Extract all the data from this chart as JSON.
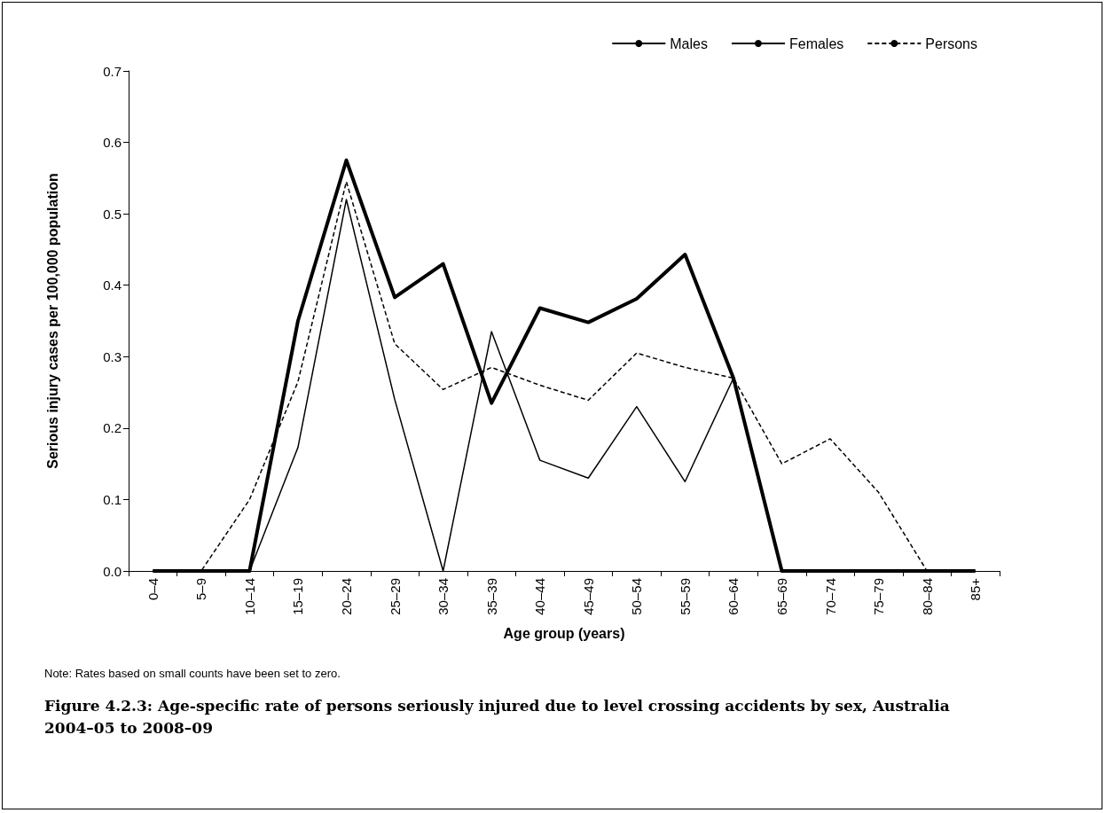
{
  "chart_data": {
    "type": "line",
    "title": "Figure 4.2.3: Age-specific rate of persons seriously injured due to level crossing accidents by sex, Australia 2004–05 to 2008–09",
    "xlabel": "Age group (years)",
    "ylabel": "Serious injury cases per 100,000 population",
    "annotations": [
      "Note: Rates based on small counts have been set to zero."
    ],
    "categories": [
      "0–4",
      "5–9",
      "10–14",
      "15–19",
      "20–24",
      "25–29",
      "30–34",
      "35–39",
      "40–44",
      "45–49",
      "50–54",
      "55–59",
      "60–64",
      "65–69",
      "70–74",
      "75–79",
      "80–84",
      "85+"
    ],
    "series": [
      {
        "name": "Males",
        "color": "#000000",
        "line_style": "solid",
        "values": [
          0,
          0,
          0,
          0.35,
          0.575,
          0.383,
          0.43,
          0.235,
          0.368,
          0.348,
          0.381,
          0.443,
          0.27,
          0,
          0,
          0,
          0,
          0
        ]
      },
      {
        "name": "Females",
        "color": "#000000",
        "line_style": "solid",
        "values": [
          0,
          0,
          0,
          0.173,
          0.52,
          0.24,
          0,
          0.335,
          0.155,
          0.13,
          0.23,
          0.125,
          0.27,
          0,
          0,
          0,
          0,
          0
        ]
      },
      {
        "name": "Persons",
        "color": "#000000",
        "line_style": "dashed",
        "values": [
          0,
          0,
          0.1,
          0.265,
          0.545,
          0.318,
          0.254,
          0.285,
          0.26,
          0.239,
          0.305,
          0.285,
          0.27,
          0.15,
          0.185,
          0.11,
          0,
          0
        ]
      }
    ],
    "ylim": [
      0,
      0.7
    ],
    "yticks": [
      {
        "value": 0,
        "label": "0.0"
      },
      {
        "value": 0.1,
        "label": "0.1"
      },
      {
        "value": 0.2,
        "label": "0.2"
      },
      {
        "value": 0.3,
        "label": "0.3"
      },
      {
        "value": 0.4,
        "label": "0.4"
      },
      {
        "value": 0.5,
        "label": "0.5"
      },
      {
        "value": 0.6,
        "label": "0.6"
      },
      {
        "value": 0.7,
        "label": "0.7"
      }
    ],
    "grid": false,
    "legend": "top right",
    "marker": "none"
  }
}
